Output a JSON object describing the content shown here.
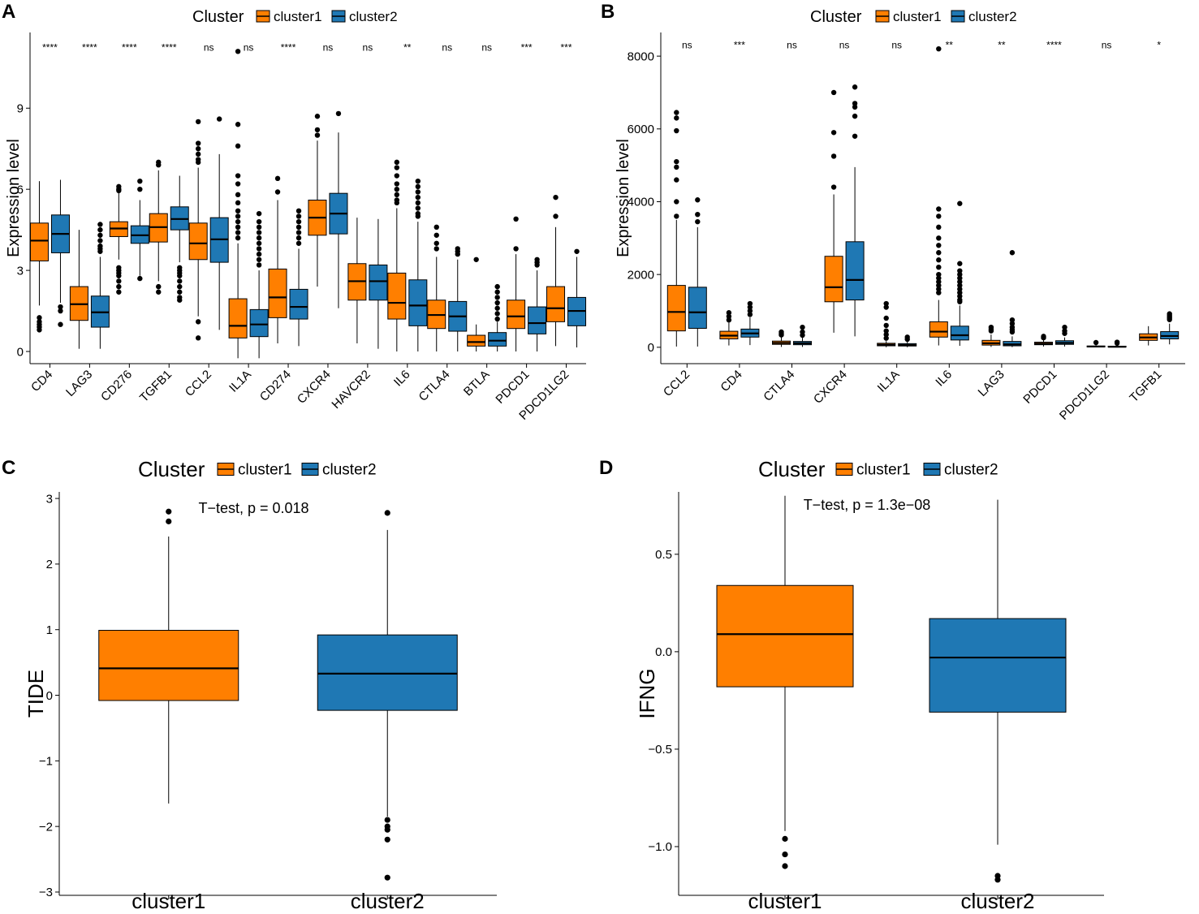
{
  "colors": {
    "cluster1": "#FF7F00",
    "cluster2": "#1F78B4",
    "axis": "#000000",
    "median": "#000000"
  },
  "chart_data": [
    {
      "panel": "A",
      "type": "boxplot",
      "title": "",
      "legend_title": "Cluster",
      "legend_items": [
        "cluster1",
        "cluster2"
      ],
      "legend_position": "top",
      "xlabel": "",
      "ylabel": "Expression level",
      "ylim": [
        -0.45,
        11.8
      ],
      "yticks": [
        0,
        3,
        6,
        9
      ],
      "ytick_labels": [
        "0",
        "3",
        "6",
        "9"
      ],
      "categories": [
        "CD4",
        "LAG3",
        "CD276",
        "TGFB1",
        "CCL2",
        "IL1A",
        "CD274",
        "CXCR4",
        "HAVCR2",
        "IL6",
        "CTLA4",
        "BTLA",
        "PDCD1",
        "PDCD1LG2"
      ],
      "significance": [
        "****",
        "****",
        "****",
        "****",
        "ns",
        "ns",
        "****",
        "ns",
        "ns",
        "**",
        "ns",
        "ns",
        "***",
        "***"
      ],
      "sig_y": 11.25,
      "series": [
        {
          "name": "cluster1",
          "boxes": [
            {
              "min": 1.7,
              "q1": 3.35,
              "median": 4.1,
              "q3": 4.75,
              "max": 6.3,
              "outliers": [
                1.25,
                1.1,
                1.0,
                0.9,
                0.8
              ]
            },
            {
              "min": 0.1,
              "q1": 1.15,
              "median": 1.75,
              "q3": 2.4,
              "max": 4.5,
              "outliers": []
            },
            {
              "min": 3.4,
              "q1": 4.25,
              "median": 4.55,
              "q3": 4.8,
              "max": 5.9,
              "outliers": [
                6.1,
                6.0,
                5.95,
                3.1,
                3.0,
                2.9,
                2.8,
                2.6,
                2.4,
                2.2
              ]
            },
            {
              "min": 2.6,
              "q1": 4.05,
              "median": 4.6,
              "q3": 5.1,
              "max": 6.7,
              "outliers": [
                7.0,
                6.9,
                2.4,
                2.2
              ]
            },
            {
              "min": 1.3,
              "q1": 3.4,
              "median": 4.0,
              "q3": 4.75,
              "max": 6.8,
              "outliers": [
                8.5,
                7.7,
                7.5,
                7.3,
                7.1,
                7.0,
                1.1,
                0.5
              ]
            },
            {
              "min": -0.25,
              "q1": 0.5,
              "median": 0.95,
              "q3": 1.95,
              "max": 4.0,
              "outliers": [
                11.1,
                8.4,
                7.6,
                6.5,
                6.2,
                5.8,
                5.5,
                5.2,
                5.0,
                4.8,
                4.6,
                4.4,
                4.2
              ]
            },
            {
              "min": 0.3,
              "q1": 1.25,
              "median": 2.0,
              "q3": 3.05,
              "max": 5.6,
              "outliers": [
                6.4,
                5.9
              ]
            },
            {
              "min": 2.4,
              "q1": 4.3,
              "median": 4.95,
              "q3": 5.6,
              "max": 7.8,
              "outliers": [
                8.7,
                8.2,
                8.0
              ]
            },
            {
              "min": 0.3,
              "q1": 1.9,
              "median": 2.6,
              "q3": 3.25,
              "max": 4.95,
              "outliers": []
            },
            {
              "min": 0.0,
              "q1": 1.2,
              "median": 1.8,
              "q3": 2.9,
              "max": 5.3,
              "outliers": [
                7.0,
                6.8,
                6.5,
                6.2,
                6.0,
                5.8,
                5.6,
                5.5
              ]
            },
            {
              "min": 0.0,
              "q1": 0.85,
              "median": 1.35,
              "q3": 1.9,
              "max": 3.5,
              "outliers": [
                4.6,
                4.3,
                4.0,
                3.8
              ]
            },
            {
              "min": 0.0,
              "q1": 0.2,
              "median": 0.35,
              "q3": 0.6,
              "max": 1.0,
              "outliers": [
                3.4
              ]
            },
            {
              "min": 0.0,
              "q1": 0.85,
              "median": 1.3,
              "q3": 1.9,
              "max": 3.6,
              "outliers": [
                4.9,
                3.8
              ]
            },
            {
              "min": 0.2,
              "q1": 1.1,
              "median": 1.6,
              "q3": 2.4,
              "max": 4.6,
              "outliers": [
                5.7,
                5.0
              ]
            }
          ]
        },
        {
          "name": "cluster2",
          "boxes": [
            {
              "min": 1.8,
              "q1": 3.65,
              "median": 4.35,
              "q3": 5.05,
              "max": 6.35,
              "outliers": [
                1.65,
                1.5,
                1.0
              ]
            },
            {
              "min": 0.1,
              "q1": 0.9,
              "median": 1.45,
              "q3": 2.05,
              "max": 3.5,
              "outliers": [
                4.7,
                4.5,
                4.3,
                4.1,
                3.9,
                3.8,
                3.7
              ]
            },
            {
              "min": 2.8,
              "q1": 4.0,
              "median": 4.3,
              "q3": 4.65,
              "max": 5.6,
              "outliers": [
                6.3,
                6.0,
                2.7
              ]
            },
            {
              "min": 3.3,
              "q1": 4.5,
              "median": 4.9,
              "q3": 5.35,
              "max": 6.5,
              "outliers": [
                3.1,
                3.0,
                2.9,
                2.8,
                2.6,
                2.4,
                2.2,
                2.0,
                1.9
              ]
            },
            {
              "min": 0.8,
              "q1": 3.3,
              "median": 4.15,
              "q3": 4.95,
              "max": 7.3,
              "outliers": [
                8.6
              ]
            },
            {
              "min": -0.25,
              "q1": 0.55,
              "median": 1.0,
              "q3": 1.55,
              "max": 3.0,
              "outliers": [
                5.1,
                4.8,
                4.6,
                4.4,
                4.2,
                4.0,
                3.8,
                3.6,
                3.4,
                3.2
              ]
            },
            {
              "min": 0.2,
              "q1": 1.2,
              "median": 1.65,
              "q3": 2.3,
              "max": 3.8,
              "outliers": [
                5.2,
                5.0,
                4.8,
                4.6,
                4.4,
                4.2,
                4.0
              ]
            },
            {
              "min": 1.6,
              "q1": 4.35,
              "median": 5.1,
              "q3": 5.85,
              "max": 8.1,
              "outliers": [
                8.8
              ]
            },
            {
              "min": 0.1,
              "q1": 1.9,
              "median": 2.6,
              "q3": 3.2,
              "max": 4.9,
              "outliers": []
            },
            {
              "min": 0.0,
              "q1": 0.95,
              "median": 1.7,
              "q3": 2.65,
              "max": 4.8,
              "outliers": [
                6.3,
                6.1,
                5.9,
                5.7,
                5.5,
                5.3,
                5.1,
                5.0
              ]
            },
            {
              "min": 0.0,
              "q1": 0.75,
              "median": 1.3,
              "q3": 1.85,
              "max": 3.4,
              "outliers": [
                3.8,
                3.7,
                3.6
              ]
            },
            {
              "min": 0.0,
              "q1": 0.2,
              "median": 0.4,
              "q3": 0.7,
              "max": 1.1,
              "outliers": [
                2.4,
                2.2,
                2.0,
                1.8,
                1.6,
                1.4,
                1.2
              ]
            },
            {
              "min": 0.0,
              "q1": 0.65,
              "median": 1.05,
              "q3": 1.65,
              "max": 3.0,
              "outliers": [
                3.4,
                3.3,
                3.2
              ]
            },
            {
              "min": 0.15,
              "q1": 0.95,
              "median": 1.5,
              "q3": 2.0,
              "max": 3.5,
              "outliers": [
                3.7
              ]
            }
          ]
        }
      ]
    },
    {
      "panel": "B",
      "type": "boxplot",
      "title": "",
      "legend_title": "Cluster",
      "legend_items": [
        "cluster1",
        "cluster2"
      ],
      "legend_position": "top",
      "xlabel": "",
      "ylabel": "Expression level",
      "ylim": [
        -450,
        8650
      ],
      "yticks": [
        0,
        2000,
        4000,
        6000,
        8000
      ],
      "ytick_labels": [
        "0",
        "2000",
        "4000",
        "6000",
        "8000"
      ],
      "categories": [
        "CCL2",
        "CD4",
        "CTLA4",
        "CXCR4",
        "IL1A",
        "IL6",
        "LAG3",
        "PDCD1",
        "PDCD1LG2",
        "TGFB1"
      ],
      "significance": [
        "ns",
        "***",
        "ns",
        "ns",
        "ns",
        "**",
        "**",
        "****",
        "ns",
        "*"
      ],
      "sig_y": 8300,
      "series": [
        {
          "name": "cluster1",
          "boxes": [
            {
              "min": 20,
              "q1": 450,
              "median": 970,
              "q3": 1700,
              "max": 3500,
              "outliers": [
                6450,
                6300,
                5950,
                5100,
                4950,
                4600,
                4000,
                3600
              ]
            },
            {
              "min": 50,
              "q1": 230,
              "median": 320,
              "q3": 440,
              "max": 680,
              "outliers": [
                950,
                850,
                750
              ]
            },
            {
              "min": 10,
              "q1": 80,
              "median": 120,
              "q3": 170,
              "max": 280,
              "outliers": [
                420,
                380,
                340
              ]
            },
            {
              "min": 400,
              "q1": 1250,
              "median": 1650,
              "q3": 2500,
              "max": 4200,
              "outliers": [
                7000,
                5900,
                5250,
                4400
              ]
            },
            {
              "min": 0,
              "q1": 40,
              "median": 70,
              "q3": 110,
              "max": 170,
              "outliers": [
                1200,
                1100,
                800,
                600,
                450,
                350,
                250
              ]
            },
            {
              "min": 50,
              "q1": 280,
              "median": 430,
              "q3": 700,
              "max": 1300,
              "outliers": [
                8200,
                3800,
                3600,
                3300,
                3000,
                2800,
                2600,
                2400,
                2200,
                2000,
                1900,
                1800,
                1700,
                1600,
                1500
              ]
            },
            {
              "min": 10,
              "q1": 60,
              "median": 110,
              "q3": 190,
              "max": 350,
              "outliers": [
                550,
                500,
                450
              ]
            },
            {
              "min": 20,
              "q1": 70,
              "median": 100,
              "q3": 140,
              "max": 200,
              "outliers": [
                300,
                260
              ]
            },
            {
              "min": 0,
              "q1": 10,
              "median": 20,
              "q3": 35,
              "max": 60,
              "outliers": [
                130
              ]
            },
            {
              "min": 50,
              "q1": 190,
              "median": 270,
              "q3": 370,
              "max": 580,
              "outliers": []
            }
          ]
        },
        {
          "name": "cluster2",
          "boxes": [
            {
              "min": 20,
              "q1": 520,
              "median": 960,
              "q3": 1650,
              "max": 3300,
              "outliers": [
                4050,
                3650,
                3450
              ]
            },
            {
              "min": 60,
              "q1": 280,
              "median": 380,
              "q3": 500,
              "max": 820,
              "outliers": [
                1200,
                1100,
                1000,
                900
              ]
            },
            {
              "min": 10,
              "q1": 70,
              "median": 110,
              "q3": 160,
              "max": 260,
              "outliers": [
                550,
                420,
                330
              ]
            },
            {
              "min": 300,
              "q1": 1300,
              "median": 1850,
              "q3": 2900,
              "max": 4950,
              "outliers": [
                7150,
                6700,
                6600,
                6350,
                5800
              ]
            },
            {
              "min": 0,
              "q1": 35,
              "median": 60,
              "q3": 100,
              "max": 160,
              "outliers": [
                280,
                220
              ]
            },
            {
              "min": 40,
              "q1": 200,
              "median": 330,
              "q3": 580,
              "max": 1150,
              "outliers": [
                3950,
                2300,
                2100,
                2000,
                1900,
                1800,
                1700,
                1600,
                1500,
                1400,
                1300,
                1250
              ]
            },
            {
              "min": 5,
              "q1": 40,
              "median": 80,
              "q3": 160,
              "max": 300,
              "outliers": [
                2600,
                750,
                650,
                550,
                480,
                420
              ]
            },
            {
              "min": 20,
              "q1": 80,
              "median": 120,
              "q3": 180,
              "max": 270,
              "outliers": [
                550,
                450,
                380
              ]
            },
            {
              "min": 0,
              "q1": 5,
              "median": 15,
              "q3": 30,
              "max": 55,
              "outliers": [
                140,
                110
              ]
            },
            {
              "min": 80,
              "q1": 230,
              "median": 310,
              "q3": 430,
              "max": 650,
              "outliers": [
                920,
                880,
                840,
                800,
                760
              ]
            }
          ]
        }
      ]
    },
    {
      "panel": "C",
      "type": "boxplot",
      "title": "",
      "legend_title": "Cluster",
      "legend_items": [
        "cluster1",
        "cluster2"
      ],
      "legend_position": "top",
      "xlabel": "",
      "ylabel": "TIDE",
      "ylim": [
        -3.05,
        3.1
      ],
      "yticks": [
        -3,
        -2,
        -1,
        0,
        1,
        2,
        3
      ],
      "ytick_labels": [
        "−3",
        "−2",
        "−1",
        "0",
        "1",
        "2",
        "3"
      ],
      "categories": [
        "cluster1",
        "cluster2"
      ],
      "annotation": "T−test, p = 0.018",
      "series": [
        {
          "name": "cluster1",
          "boxes": [
            {
              "min": -1.65,
              "q1": -0.08,
              "median": 0.41,
              "q3": 0.99,
              "max": 2.42,
              "outliers": [
                2.8,
                2.65
              ]
            },
            null
          ]
        },
        {
          "name": "cluster2",
          "boxes": [
            null,
            {
              "min": -1.85,
              "q1": -0.23,
              "median": 0.33,
              "q3": 0.92,
              "max": 2.52,
              "outliers": [
                2.78,
                -1.9,
                -2.0,
                -2.05,
                -2.2,
                -2.78
              ]
            }
          ]
        }
      ]
    },
    {
      "panel": "D",
      "type": "boxplot",
      "title": "",
      "legend_title": "Cluster",
      "legend_items": [
        "cluster1",
        "cluster2"
      ],
      "legend_position": "top",
      "xlabel": "",
      "ylabel": "IFNG",
      "ylim": [
        -1.25,
        0.82
      ],
      "yticks": [
        -1.0,
        -0.5,
        0.0,
        0.5
      ],
      "ytick_labels": [
        "−1.0",
        "−0.5",
        "0.0",
        "0.5"
      ],
      "categories": [
        "cluster1",
        "cluster2"
      ],
      "annotation": "T−test, p = 1.3e−08",
      "series": [
        {
          "name": "cluster1",
          "boxes": [
            {
              "min": -0.92,
              "q1": -0.18,
              "median": 0.09,
              "q3": 0.34,
              "max": 0.8,
              "outliers": [
                -0.96,
                -1.04,
                -1.1
              ]
            },
            null
          ]
        },
        {
          "name": "cluster2",
          "boxes": [
            null,
            {
              "min": -0.99,
              "q1": -0.31,
              "median": -0.03,
              "q3": 0.17,
              "max": 0.78,
              "outliers": [
                -1.15,
                -1.17
              ]
            }
          ]
        }
      ]
    }
  ]
}
